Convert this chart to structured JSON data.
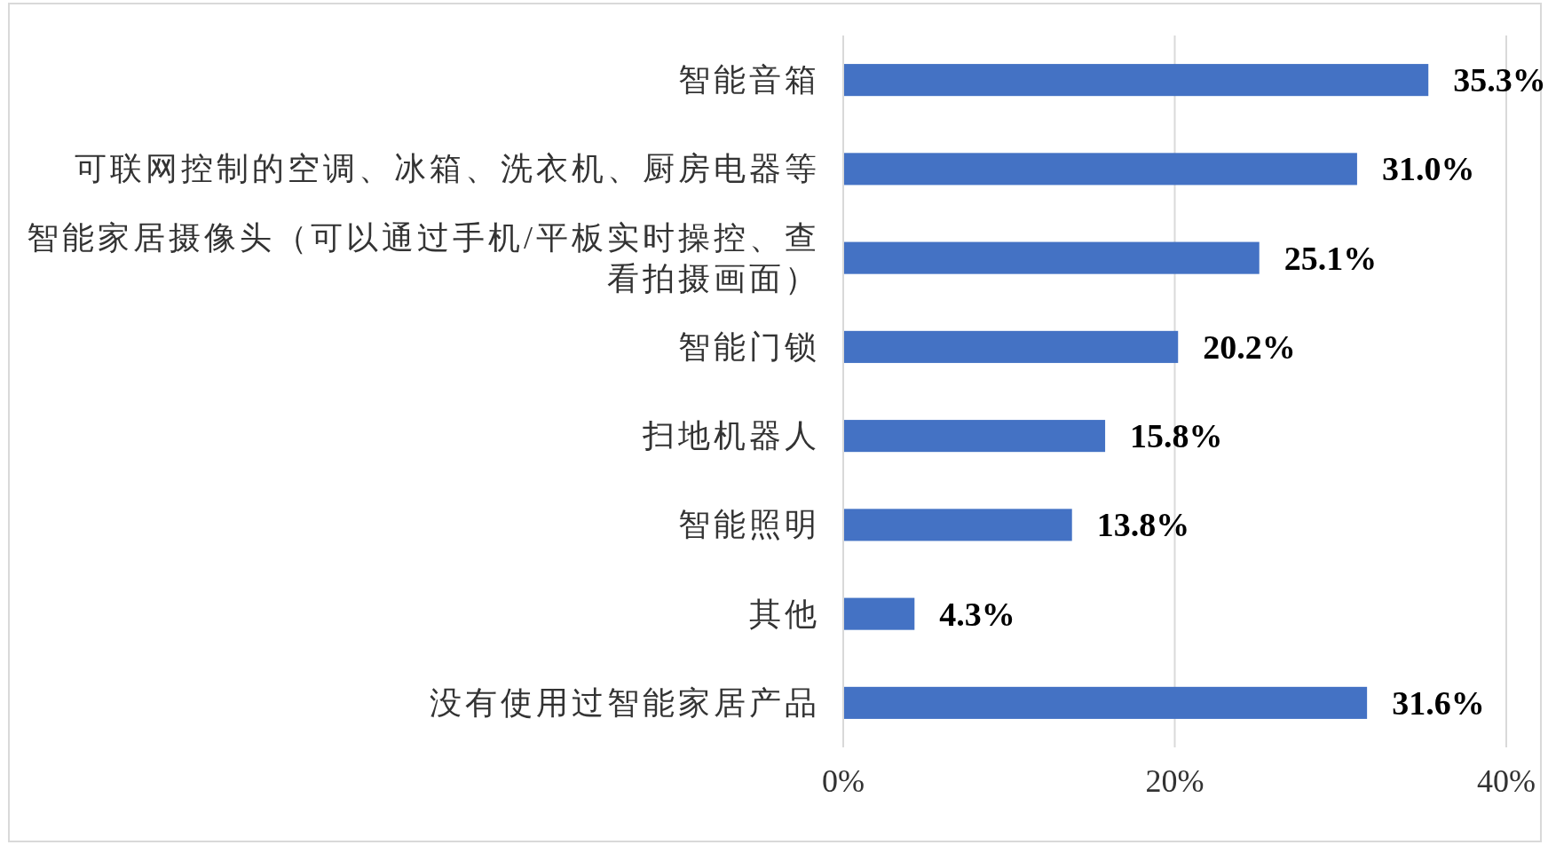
{
  "chart_data": {
    "type": "bar",
    "orientation": "horizontal",
    "categories": [
      "智能音箱",
      "可联网控制的空调、冰箱、洗衣机、厨房电器等",
      "智能家居摄像头（可以通过手机/平板实时操控、查看拍摄画面）",
      "智能门锁",
      "扫地机器人",
      "智能照明",
      "其他",
      "没有使用过智能家居产品"
    ],
    "values": [
      35.3,
      31.0,
      25.1,
      20.2,
      15.8,
      13.8,
      4.3,
      31.6
    ],
    "value_labels": [
      "35.3%",
      "31.0%",
      "25.1%",
      "20.2%",
      "15.8%",
      "13.8%",
      "4.3%",
      "31.6%"
    ],
    "color": "#4472c4",
    "xlim": [
      0,
      40
    ],
    "xticks": [
      {
        "value": 0,
        "label": "0%"
      },
      {
        "value": 20,
        "label": "20%"
      },
      {
        "value": 40,
        "label": "40%"
      }
    ],
    "grid": "x"
  }
}
